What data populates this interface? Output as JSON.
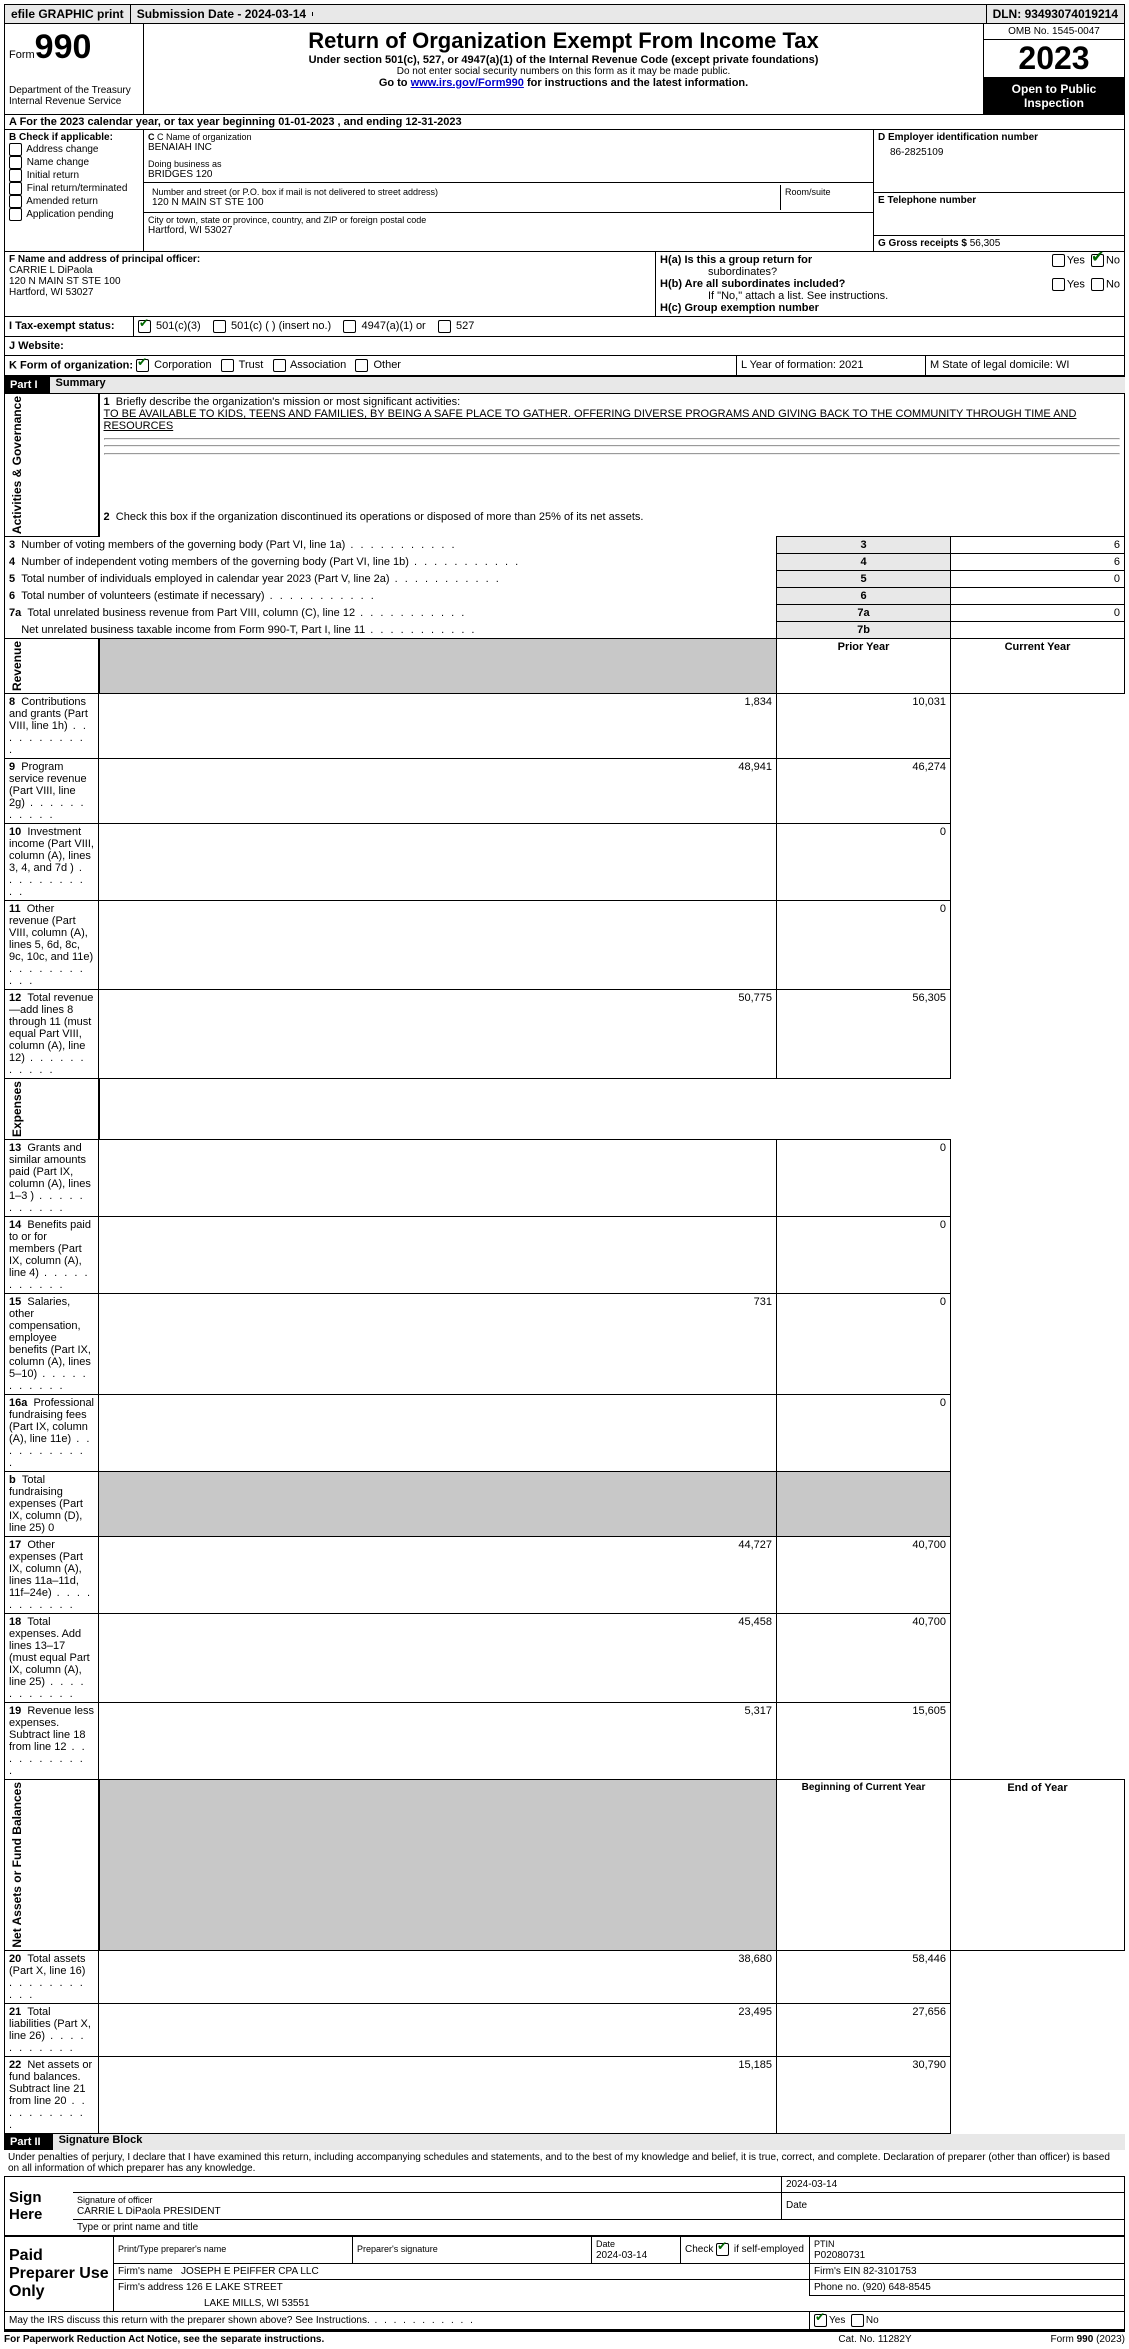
{
  "top": {
    "efile": "efile GRAPHIC print",
    "subdate_label": "Submission Date - ",
    "subdate": "2024-03-14",
    "dln_label": "DLN: ",
    "dln": "93493074019214"
  },
  "header": {
    "form_prefix": "Form",
    "form_no": "990",
    "title": "Return of Organization Exempt From Income Tax",
    "subtitle": "Under section 501(c), 527, or 4947(a)(1) of the Internal Revenue Code (except private foundations)",
    "warn": "Do not enter social security numbers on this form as it may be made public.",
    "goto_pre": "Go to ",
    "goto_link": "www.irs.gov/Form990",
    "goto_post": " for instructions and the latest information.",
    "dept": "Department of the Treasury\nInternal Revenue Service",
    "omb": "OMB No. 1545-0047",
    "year": "2023",
    "inspect": "Open to Public Inspection"
  },
  "rowA": "A For the 2023 calendar year, or tax year beginning 01-01-2023   , and ending 12-31-2023",
  "boxB": {
    "label": "B Check if applicable:",
    "items": [
      "Address change",
      "Name change",
      "Initial return",
      "Final return/terminated",
      "Amended return",
      "Application pending"
    ]
  },
  "boxC": {
    "name_label": "C Name of organization",
    "name": "BENAIAH INC",
    "dba_label": "Doing business as",
    "dba": "BRIDGES 120",
    "street_label": "Number and street (or P.O. box if mail is not delivered to street address)",
    "street": "120 N MAIN ST STE 100",
    "room_label": "Room/suite",
    "city_label": "City or town, state or province, country, and ZIP or foreign postal code",
    "city": "Hartford, WI  53027"
  },
  "boxD": {
    "label": "D Employer identification number",
    "value": "86-2825109"
  },
  "boxE": {
    "label": "E Telephone number",
    "value": ""
  },
  "boxG": {
    "label": "G Gross receipts $",
    "value": "56,305"
  },
  "boxF": {
    "label": "F  Name and address of principal officer:",
    "name": "CARRIE L DiPaola",
    "addr1": "120 N MAIN ST STE 100",
    "addr2": "Hartford, WI  53027"
  },
  "boxH": {
    "a": "H(a)  Is this a group return for",
    "a2": "subordinates?",
    "b": "H(b)  Are all subordinates included?",
    "bnote": "If \"No,\" attach a list. See instructions.",
    "c": "H(c)  Group exemption number  "
  },
  "rowI_label": "I    Tax-exempt status:",
  "rowI_opts": [
    "501(c)(3)",
    "501(c) (  ) (insert no.)",
    "4947(a)(1) or",
    "527"
  ],
  "rowJ_label": "J   Website: ",
  "rowK_label": "K Form of organization:",
  "rowK_opts": [
    "Corporation",
    "Trust",
    "Association",
    "Other"
  ],
  "rowL": "L Year of formation: 2021",
  "rowM": "M State of legal domicile: WI",
  "part1": {
    "label": "Part I",
    "title": "Summary",
    "q1": "Briefly describe the organization's mission or most significant activities:",
    "q1text": "TO BE AVAILABLE TO KIDS, TEENS AND FAMILIES, BY BEING A SAFE PLACE TO GATHER. OFFERING DIVERSE PROGRAMS AND GIVING BACK TO THE COMMUNITY THROUGH TIME AND RESOURCES",
    "q2": "Check this box        if the organization discontinued its operations or disposed of more than 25% of its net assets.",
    "sideA": "Activities & Governance",
    "sideR": "Revenue",
    "sideE": "Expenses",
    "sideN": "Net Assets or Fund Balances",
    "lines_ag": [
      {
        "n": "3",
        "t": "Number of voting members of the governing body (Part VI, line 1a)",
        "box": "3",
        "v": "6"
      },
      {
        "n": "4",
        "t": "Number of independent voting members of the governing body (Part VI, line 1b)",
        "box": "4",
        "v": "6"
      },
      {
        "n": "5",
        "t": "Total number of individuals employed in calendar year 2023 (Part V, line 2a)",
        "box": "5",
        "v": "0"
      },
      {
        "n": "6",
        "t": "Total number of volunteers (estimate if necessary)",
        "box": "6",
        "v": ""
      },
      {
        "n": "7a",
        "t": "Total unrelated business revenue from Part VIII, column (C), line 12",
        "box": "7a",
        "v": "0"
      },
      {
        "n": "b",
        "t": "Net unrelated business taxable income from Form 990-T, Part I, line 11",
        "box": "7b",
        "v": ""
      }
    ],
    "hdr_prior": "Prior Year",
    "hdr_curr": "Current Year",
    "lines_rev": [
      {
        "n": "8",
        "t": "Contributions and grants (Part VIII, line 1h)",
        "p": "1,834",
        "c": "10,031"
      },
      {
        "n": "9",
        "t": "Program service revenue (Part VIII, line 2g)",
        "p": "48,941",
        "c": "46,274"
      },
      {
        "n": "10",
        "t": "Investment income (Part VIII, column (A), lines 3, 4, and 7d )",
        "p": "",
        "c": "0"
      },
      {
        "n": "11",
        "t": "Other revenue (Part VIII, column (A), lines 5, 6d, 8c, 9c, 10c, and 11e)",
        "p": "",
        "c": "0"
      },
      {
        "n": "12",
        "t": "Total revenue—add lines 8 through 11 (must equal Part VIII, column (A), line 12)",
        "p": "50,775",
        "c": "56,305"
      }
    ],
    "lines_exp": [
      {
        "n": "13",
        "t": "Grants and similar amounts paid (Part IX, column (A), lines 1–3 )",
        "p": "",
        "c": "0"
      },
      {
        "n": "14",
        "t": "Benefits paid to or for members (Part IX, column (A), line 4)",
        "p": "",
        "c": "0"
      },
      {
        "n": "15",
        "t": "Salaries, other compensation, employee benefits (Part IX, column (A), lines 5–10)",
        "p": "731",
        "c": "0"
      },
      {
        "n": "16a",
        "t": "Professional fundraising fees (Part IX, column (A), line 11e)",
        "p": "",
        "c": "0"
      },
      {
        "n": "b",
        "t": "Total fundraising expenses (Part IX, column (D), line 25) 0",
        "p": "GREY",
        "c": "GREY"
      },
      {
        "n": "17",
        "t": "Other expenses (Part IX, column (A), lines 11a–11d, 11f–24e)",
        "p": "44,727",
        "c": "40,700"
      },
      {
        "n": "18",
        "t": "Total expenses. Add lines 13–17 (must equal Part IX, column (A), line 25)",
        "p": "45,458",
        "c": "40,700"
      },
      {
        "n": "19",
        "t": "Revenue less expenses. Subtract line 18 from line 12",
        "p": "5,317",
        "c": "15,605"
      }
    ],
    "hdr_begin": "Beginning of Current Year",
    "hdr_end": "End of Year",
    "lines_net": [
      {
        "n": "20",
        "t": "Total assets (Part X, line 16)",
        "p": "38,680",
        "c": "58,446"
      },
      {
        "n": "21",
        "t": "Total liabilities (Part X, line 26)",
        "p": "23,495",
        "c": "27,656"
      },
      {
        "n": "22",
        "t": "Net assets or fund balances. Subtract line 21 from line 20",
        "p": "15,185",
        "c": "30,790"
      }
    ]
  },
  "part2": {
    "label": "Part II",
    "title": "Signature Block",
    "decl": "Under penalties of perjury, I declare that I have examined this return, including accompanying schedules and statements, and to the best of my knowledge and belief, it is true, correct, and complete. Declaration of preparer (other than officer) is based on all information of which preparer has any knowledge.",
    "sign_here": "Sign Here",
    "sig_off": "Signature of officer",
    "sig_name": "CARRIE L DiPaola PRESIDENT",
    "sig_type": "Type or print name and title",
    "sig_date": "2024-03-14",
    "date_l": "Date",
    "paid": "Paid Preparer Use Only",
    "prep_name_l": "Print/Type preparer's name",
    "prep_sig_l": "Preparer's signature",
    "prep_date": "2024-03-14",
    "check_self": "Check         if self-employed",
    "ptin_l": "PTIN",
    "ptin": "P02080731",
    "firm_name_l": "Firm's name   ",
    "firm_name": "JOSEPH E PEIFFER CPA LLC",
    "firm_ein_l": "Firm's EIN  ",
    "firm_ein": "82-3101753",
    "firm_addr_l": "Firm's address ",
    "firm_addr1": "126 E LAKE STREET",
    "firm_addr2": "LAKE MILLS, WI  53551",
    "phone_l": "Phone no. ",
    "phone": "(920) 648-8545",
    "discuss": "May the IRS discuss this return with the preparer shown above? See Instructions.",
    "yes": "Yes",
    "no": "No"
  },
  "footer": {
    "pra": "For Paperwork Reduction Act Notice, see the separate instructions.",
    "cat": "Cat. No. 11282Y",
    "form": "Form 990 (2023)"
  }
}
